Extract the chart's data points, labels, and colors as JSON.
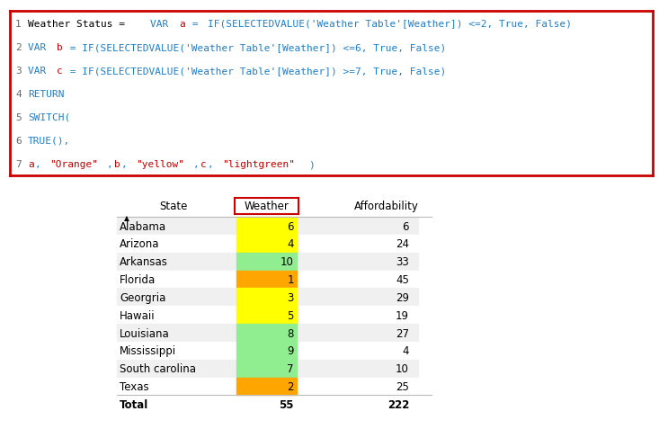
{
  "line_contents": [
    [
      [
        "1",
        "#666666"
      ],
      [
        "Weather Status = ",
        "#000000"
      ],
      [
        "VAR ",
        "#1F7EC7"
      ],
      [
        "a",
        "#C00000"
      ],
      [
        " = ",
        "#1F7EC7"
      ],
      [
        "IF(SELECTEDVALUE('Weather Table'[Weather]) <=2, True, False)",
        "#1F7EC7"
      ]
    ],
    [
      [
        "2",
        "#666666"
      ],
      [
        "VAR ",
        "#1F7EC7"
      ],
      [
        "b",
        "#C00000"
      ],
      [
        " = IF(SELECTEDVALUE('Weather Table'[Weather]) <=6, True, False)",
        "#1F7EC7"
      ]
    ],
    [
      [
        "3",
        "#666666"
      ],
      [
        "VAR ",
        "#1F7EC7"
      ],
      [
        "c",
        "#C00000"
      ],
      [
        " = IF(SELECTEDVALUE('Weather Table'[Weather]) >=7, True, False)",
        "#1F7EC7"
      ]
    ],
    [
      [
        "4",
        "#666666"
      ],
      [
        "RETURN",
        "#1F7EC7"
      ]
    ],
    [
      [
        "5",
        "#666666"
      ],
      [
        "SWITCH(",
        "#1F7EC7"
      ]
    ],
    [
      [
        "6",
        "#666666"
      ],
      [
        "TRUE(),",
        "#1F7EC7"
      ]
    ],
    [
      [
        "7",
        "#666666"
      ],
      [
        "a",
        "#C00000"
      ],
      [
        ", ",
        "#1F7EC7"
      ],
      [
        "\"Orange\"",
        "#C00000"
      ],
      [
        ",",
        "#1F7EC7"
      ],
      [
        "b",
        "#C00000"
      ],
      [
        ", ",
        "#1F7EC7"
      ],
      [
        "\"yellow\"",
        "#C00000"
      ],
      [
        ",",
        "#1F7EC7"
      ],
      [
        "c",
        "#C00000"
      ],
      [
        ", ",
        "#1F7EC7"
      ],
      [
        "\"lightgreen\"",
        "#C00000"
      ],
      [
        ")",
        "#1F7EC7"
      ]
    ]
  ],
  "table_rows": [
    {
      "state": "Alabama",
      "weather": 6,
      "affordability": 6,
      "color": "#FFFF00"
    },
    {
      "state": "Arizona",
      "weather": 4,
      "affordability": 24,
      "color": "#FFFF00"
    },
    {
      "state": "Arkansas",
      "weather": 10,
      "affordability": 33,
      "color": "#90EE90"
    },
    {
      "state": "Florida",
      "weather": 1,
      "affordability": 45,
      "color": "#FFA500"
    },
    {
      "state": "Georgria",
      "weather": 3,
      "affordability": 29,
      "color": "#FFFF00"
    },
    {
      "state": "Hawaii",
      "weather": 5,
      "affordability": 19,
      "color": "#FFFF00"
    },
    {
      "state": "Louisiana",
      "weather": 8,
      "affordability": 27,
      "color": "#90EE90"
    },
    {
      "state": "Mississippi",
      "weather": 9,
      "affordability": 4,
      "color": "#90EE90"
    },
    {
      "state": "South carolina",
      "weather": 7,
      "affordability": 10,
      "color": "#90EE90"
    },
    {
      "state": "Texas",
      "weather": 2,
      "affordability": 25,
      "color": "#FFA500"
    }
  ],
  "table_total": {
    "label": "Total",
    "weather": 55,
    "affordability": 222
  },
  "code_border": "#CC0000",
  "weather_header_border": "#CC0000",
  "row_alt_bg": "#F0F0F0",
  "row_bg": "#FFFFFF",
  "fig_bg": "#FFFFFF",
  "code_font_size": 8.0,
  "table_font_size": 8.5
}
